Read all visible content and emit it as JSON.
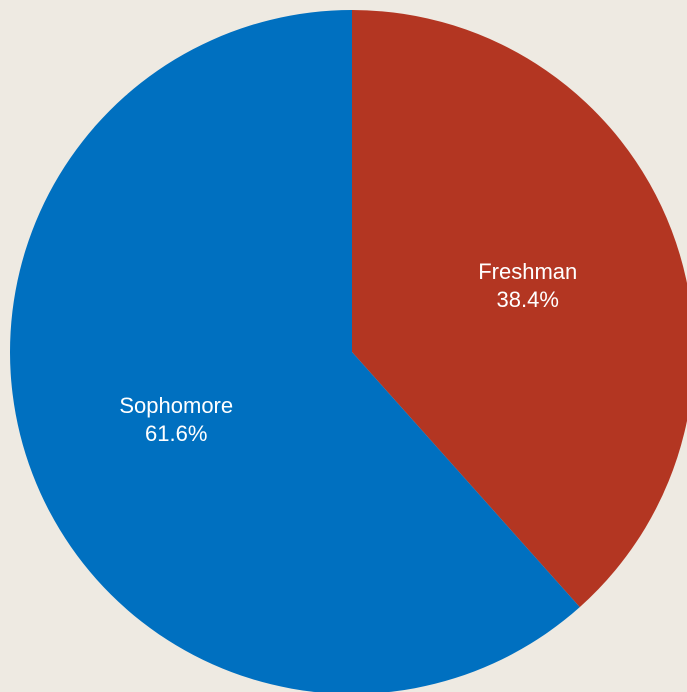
{
  "chart_data": {
    "type": "pie",
    "title": "",
    "slices": [
      {
        "label": "Freshman",
        "value": 38.4,
        "value_label": "38.4%",
        "color": "#b33622"
      },
      {
        "label": "Sophomore",
        "value": 61.6,
        "value_label": "61.6%",
        "color": "#0070c0"
      }
    ],
    "start": "top",
    "direction": "clockwise",
    "legend": "none"
  },
  "background_color": "#eeeae2"
}
